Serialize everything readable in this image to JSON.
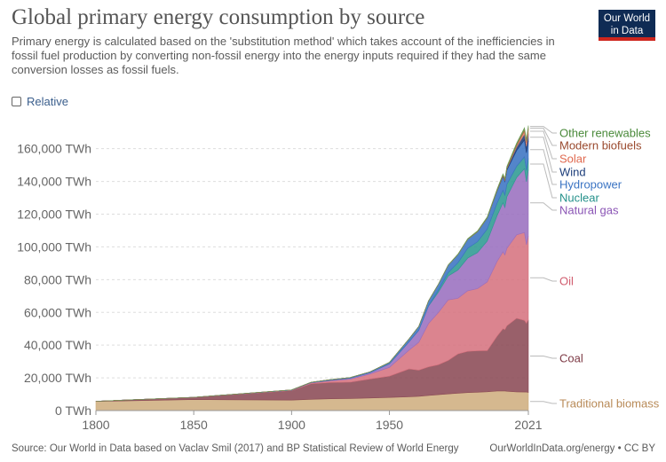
{
  "header": {
    "title": "Global primary energy consumption by source",
    "subtitle": "Primary energy is calculated based on the 'substitution method' which takes account of the inefficiencies in fossil fuel production by converting non-fossil energy into the energy inputs required if they had the same conversion losses as fossil fuels."
  },
  "logo": {
    "line1": "Our World",
    "line2": "in Data"
  },
  "controls": {
    "relative_label": "Relative"
  },
  "footer": {
    "source": "Source: Our World in Data based on Vaclav Smil (2017) and BP Statistical Review of World Energy",
    "credit": "OurWorldInData.org/energy • CC BY"
  },
  "chart_data": {
    "type": "area",
    "stacked": true,
    "title": "Global primary energy consumption by source",
    "y_unit": "TWh",
    "ylim": [
      0,
      175000
    ],
    "y_ticks": [
      0,
      20000,
      40000,
      60000,
      80000,
      100000,
      120000,
      140000,
      160000
    ],
    "y_tick_labels": [
      "0 TWh",
      "20,000 TWh",
      "40,000 TWh",
      "60,000 TWh",
      "80,000 TWh",
      "100,000 TWh",
      "120,000 TWh",
      "140,000 TWh",
      "160,000 TWh"
    ],
    "xlim": [
      1800,
      2021
    ],
    "x_ticks": [
      1800,
      1850,
      1900,
      1950,
      2021
    ],
    "x_tick_labels": [
      "1800",
      "1850",
      "1900",
      "1950",
      "2021"
    ],
    "grid": "horizontal",
    "x": [
      1800,
      1850,
      1900,
      1910,
      1920,
      1930,
      1940,
      1950,
      1960,
      1965,
      1970,
      1975,
      1980,
      1985,
      1990,
      1995,
      2000,
      2005,
      2008,
      2009,
      2010,
      2015,
      2019,
      2020,
      2021
    ],
    "series": [
      {
        "name": "Traditional biomass",
        "color": "#cfae80",
        "values": [
          5600,
          6700,
          6400,
          6900,
          7200,
          7300,
          7700,
          8000,
          8400,
          8700,
          9200,
          9700,
          10200,
          10600,
          11000,
          11200,
          11500,
          11900,
          12000,
          12000,
          11800,
          11400,
          11300,
          11300,
          11100
        ]
      },
      {
        "name": "Coal",
        "color": "#8b4a55",
        "values": [
          100,
          1400,
          5800,
          9500,
          10000,
          10100,
          11600,
          13000,
          17000,
          16000,
          17500,
          18300,
          20400,
          24000,
          25200,
          25300,
          25100,
          33500,
          38000,
          37500,
          40000,
          45000,
          43800,
          42000,
          44400
        ]
      },
      {
        "name": "Oil",
        "color": "#d6737f",
        "values": [
          0,
          0,
          200,
          500,
          1000,
          1800,
          3000,
          5400,
          11500,
          17000,
          26500,
          31800,
          37000,
          34000,
          37000,
          38000,
          42000,
          45600,
          47000,
          45600,
          47300,
          51000,
          53700,
          48000,
          51200
        ]
      },
      {
        "name": "Natural gas",
        "color": "#9a6fbf",
        "values": [
          0,
          0,
          100,
          200,
          400,
          600,
          800,
          2100,
          5100,
          7300,
          10600,
          12500,
          14600,
          17300,
          20000,
          22000,
          25000,
          28000,
          30000,
          29000,
          31500,
          35000,
          39000,
          38500,
          40400
        ]
      },
      {
        "name": "Nuclear",
        "color": "#2e9a92",
        "values": [
          0,
          0,
          0,
          0,
          0,
          0,
          0,
          0,
          0,
          100,
          200,
          1200,
          2100,
          4400,
          6000,
          6600,
          7300,
          7600,
          7600,
          7500,
          7600,
          6800,
          7200,
          6900,
          7000
        ]
      },
      {
        "name": "Hydropower",
        "color": "#3b74c3",
        "values": [
          0,
          0,
          100,
          200,
          300,
          400,
          500,
          900,
          1800,
          2300,
          3000,
          3600,
          4500,
          5000,
          5400,
          6100,
          6800,
          7500,
          8300,
          8300,
          8700,
          9700,
          10400,
          10800,
          10600
        ]
      },
      {
        "name": "Wind",
        "color": "#1c3d7a",
        "values": [
          0,
          0,
          0,
          0,
          0,
          0,
          0,
          0,
          0,
          0,
          0,
          0,
          0,
          0,
          0,
          10,
          80,
          270,
          550,
          700,
          890,
          2100,
          3600,
          4000,
          4600
        ]
      },
      {
        "name": "Solar",
        "color": "#e58770",
        "values": [
          0,
          0,
          0,
          0,
          0,
          0,
          0,
          0,
          0,
          0,
          0,
          0,
          0,
          0,
          0,
          0,
          3,
          10,
          30,
          50,
          80,
          700,
          1800,
          2200,
          2700
        ]
      },
      {
        "name": "Modern biofuels",
        "color": "#b26943",
        "values": [
          0,
          0,
          0,
          0,
          0,
          0,
          0,
          0,
          0,
          0,
          0,
          0,
          50,
          130,
          150,
          160,
          180,
          320,
          600,
          650,
          700,
          900,
          1000,
          950,
          1050
        ]
      },
      {
        "name": "Other renewables",
        "color": "#6b9a52",
        "values": [
          0,
          0,
          0,
          0,
          0,
          0,
          0,
          0,
          0,
          0,
          0,
          50,
          120,
          220,
          330,
          390,
          430,
          520,
          580,
          620,
          650,
          900,
          1000,
          1050,
          1100
        ]
      }
    ],
    "legend_labels": [
      {
        "name": "Other renewables",
        "color": "#4a8a3a"
      },
      {
        "name": "Modern biofuels",
        "color": "#9a4a2e"
      },
      {
        "name": "Solar",
        "color": "#e0694f"
      },
      {
        "name": "Wind",
        "color": "#1c3d7a"
      },
      {
        "name": "Hydropower",
        "color": "#3b74c3"
      },
      {
        "name": "Nuclear",
        "color": "#23908a"
      },
      {
        "name": "Natural gas",
        "color": "#8a54b5"
      },
      {
        "name": "Oil",
        "color": "#d05c6e"
      },
      {
        "name": "Coal",
        "color": "#7d3a45"
      },
      {
        "name": "Traditional biomass",
        "color": "#b88a57"
      }
    ],
    "legend_placement": "right"
  }
}
